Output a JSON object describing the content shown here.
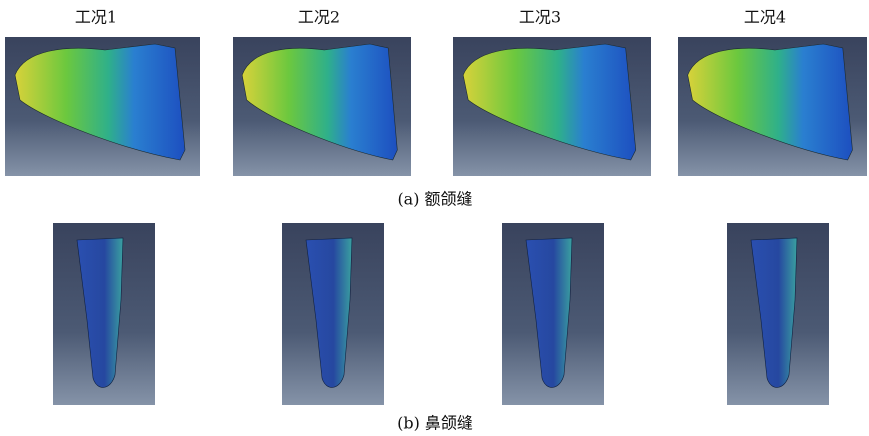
{
  "columns": [
    "工况1",
    "工况2",
    "工况3",
    "工况4"
  ],
  "captions": {
    "a": "(a) 额颌缝",
    "b": "(b) 鼻颌缝"
  }
}
